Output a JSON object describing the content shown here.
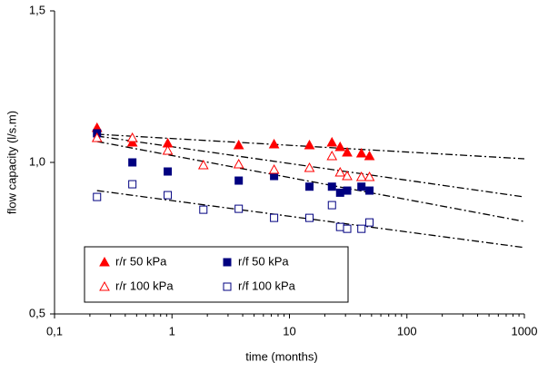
{
  "chart_data": {
    "type": "scatter",
    "xlabel": "time  (months)",
    "ylabel": "flow capacity   (l/s.m)",
    "xlog": true,
    "xlim": [
      0.1,
      1000
    ],
    "xticks": [
      {
        "value": 0.1,
        "label": "0,1"
      },
      1,
      10,
      100,
      1000
    ],
    "ylim": [
      0.5,
      1.5
    ],
    "yticks": [
      {
        "value": 0.5,
        "label": "0,5"
      },
      {
        "value": 1.0,
        "label": "1,0"
      },
      {
        "value": 1.5,
        "label": "1,5"
      }
    ],
    "series": [
      {
        "name": "r/r 50 kPa",
        "color": "#ff0000",
        "marker": "triangle",
        "filled": true,
        "x": [
          0.23,
          0.46,
          0.92,
          3.7,
          7.4,
          14.8,
          23,
          27,
          31,
          41,
          48
        ],
        "values": [
          1.114,
          1.066,
          1.063,
          1.057,
          1.06,
          1.057,
          1.066,
          1.051,
          1.033,
          1.03,
          1.021
        ]
      },
      {
        "name": "r/f 50 kPa",
        "color": "#000080",
        "marker": "square",
        "filled": true,
        "x": [
          0.23,
          0.46,
          0.92,
          3.7,
          7.4,
          14.8,
          23,
          27,
          31,
          41,
          48
        ],
        "values": [
          1.096,
          1.0,
          0.97,
          0.94,
          0.955,
          0.92,
          0.92,
          0.9,
          0.907,
          0.92,
          0.907
        ]
      },
      {
        "name": "r/r 100 kPa",
        "color": "#ff0000",
        "marker": "triangle",
        "filled": false,
        "x": [
          0.23,
          0.46,
          0.92,
          1.85,
          3.7,
          7.4,
          14.8,
          23,
          27,
          31,
          41,
          48
        ],
        "values": [
          1.081,
          1.081,
          1.039,
          0.991,
          0.994,
          0.976,
          0.982,
          1.021,
          0.967,
          0.955,
          0.952,
          0.952
        ]
      },
      {
        "name": "r/f 100 kPa",
        "color": "#000080",
        "marker": "square",
        "filled": false,
        "x": [
          0.23,
          0.46,
          0.92,
          1.85,
          3.7,
          7.4,
          14.8,
          23,
          27,
          31,
          41,
          48
        ],
        "values": [
          0.886,
          0.928,
          0.892,
          0.844,
          0.847,
          0.817,
          0.817,
          0.859,
          0.787,
          0.781,
          0.781,
          0.802
        ]
      }
    ],
    "trendlines": [
      {
        "x": [
          0.23,
          1000
        ],
        "values": [
          1.093,
          1.012
        ]
      },
      {
        "x": [
          0.23,
          1000
        ],
        "values": [
          1.087,
          0.886
        ]
      },
      {
        "x": [
          0.23,
          1000
        ],
        "values": [
          1.069,
          0.805
        ]
      },
      {
        "x": [
          0.23,
          1000
        ],
        "values": [
          0.907,
          0.719
        ]
      }
    ],
    "trend_color": "#000000"
  }
}
